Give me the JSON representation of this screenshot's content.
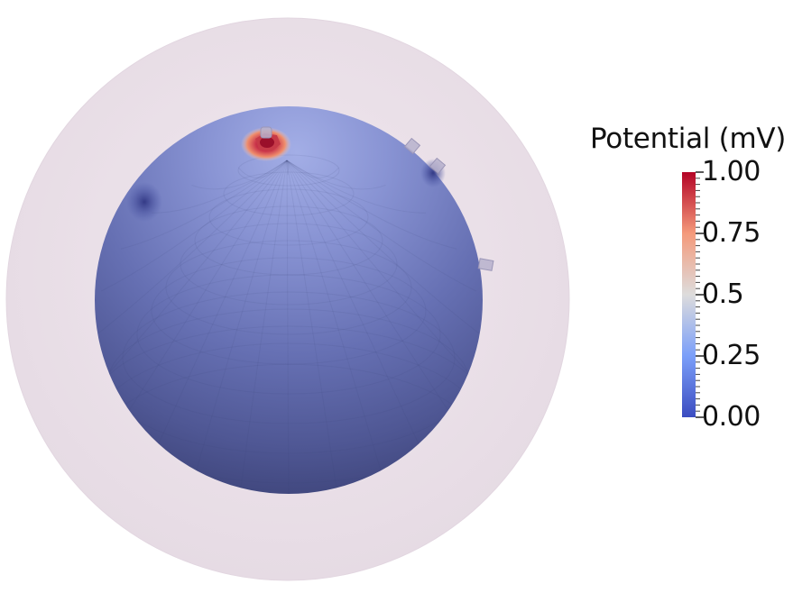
{
  "legend": {
    "title": "Potential (mV)",
    "ticks": [
      {
        "value": 1.0,
        "label": "1.00"
      },
      {
        "value": 0.75,
        "label": "0.75"
      },
      {
        "value": 0.5,
        "label": "0.5"
      },
      {
        "value": 0.25,
        "label": "0.25"
      },
      {
        "value": 0.0,
        "label": "0.00"
      }
    ],
    "range": [
      0.0,
      1.0
    ],
    "colormap": [
      "#3b4cc0",
      "#7b9ff9",
      "#dddcdc",
      "#f49a7b",
      "#b40426"
    ]
  },
  "scene": {
    "outer_sphere_color": "#ece2ea",
    "inner_sphere_color": "#5a64a8",
    "hotspot_color": "#b8263a",
    "background": "#ffffff"
  }
}
